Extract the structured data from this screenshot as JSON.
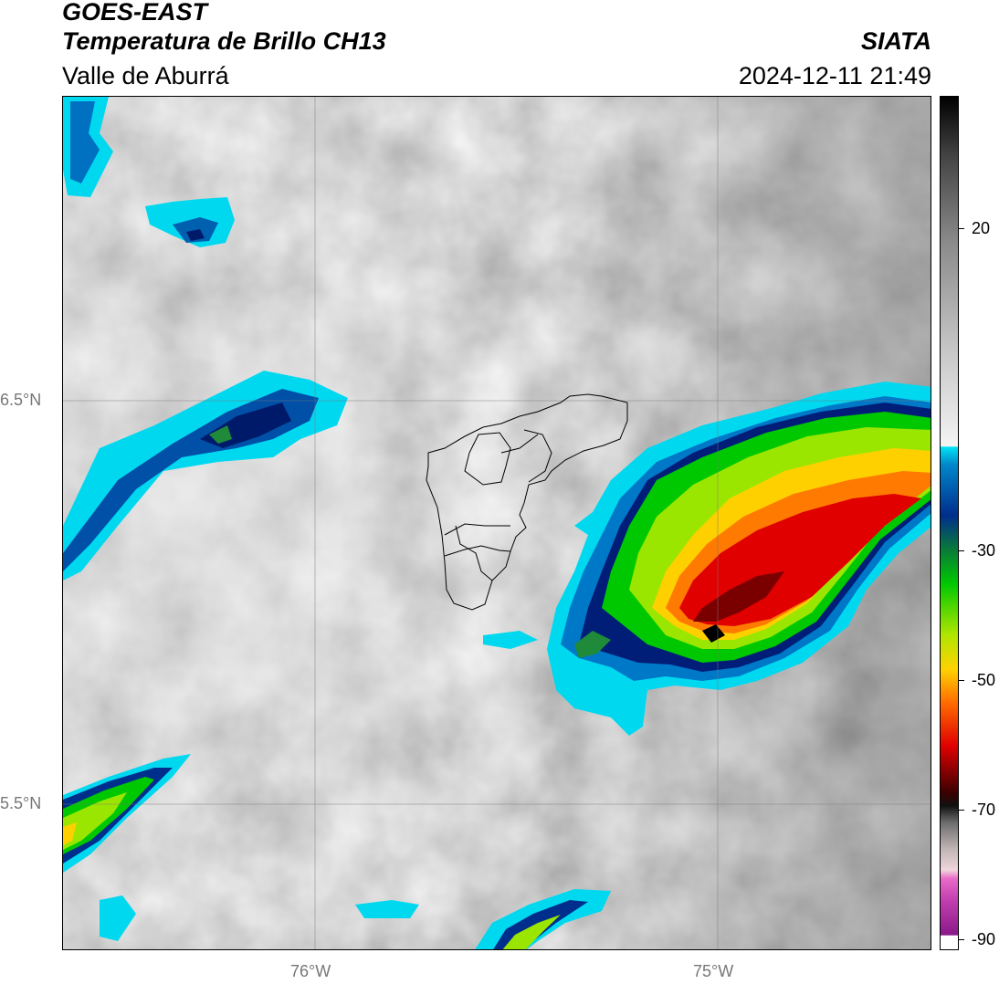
{
  "header": {
    "title_line1": "GOES-EAST",
    "title_line2": "Temperatura de Brillo CH13",
    "subtitle": "Valle de Aburrá",
    "organization": "SIATA",
    "timestamp": "2024-12-11 21:49"
  },
  "map": {
    "lat_labels": [
      "6.5°N",
      "5.5°N"
    ],
    "lon_labels": [
      "76°W",
      "75°W"
    ],
    "background_color": "#9a9a9a",
    "boundary_color": "#000000",
    "gridline_color": "#7a7a7a"
  },
  "colorbar": {
    "tick_labels": [
      "20",
      "-30",
      "-50",
      "-70",
      "-90"
    ],
    "tick_values": [
      20,
      -30,
      -50,
      -70,
      -90
    ],
    "range": [
      -92,
      30
    ],
    "colors": [
      "#ffffff",
      "#9b2a93",
      "#e05bc0",
      "#d9c9c9",
      "#8d8d8d",
      "#000000",
      "#7a0000",
      "#e00000",
      "#ff5a00",
      "#ffd000",
      "#9be600",
      "#00c800",
      "#006a2f",
      "#002e8c",
      "#0088cc",
      "#00e5f5",
      "#d9d9d9",
      "#7a7a7a",
      "#000000"
    ]
  }
}
